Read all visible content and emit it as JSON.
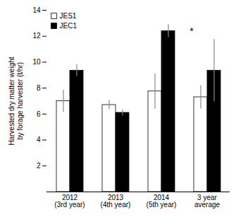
{
  "chart_data": {
    "type": "bar",
    "categories": [
      "2012\n(3rd year)",
      "2013\n(4th year)",
      "2014\n(5th year)",
      "3 year\naverage"
    ],
    "series": [
      {
        "name": "JES1",
        "color": "#ffffff",
        "values": [
          7.0,
          6.7,
          7.75,
          7.3
        ],
        "errors": [
          0.85,
          0.35,
          1.35,
          0.9
        ]
      },
      {
        "name": "JEC1",
        "color": "#000000",
        "values": [
          9.35,
          6.1,
          12.4,
          9.35
        ],
        "errors": [
          0.45,
          0.25,
          0.5,
          2.4
        ]
      }
    ],
    "ylabel": "Harvested dry matter weight\nby forage harvester (t/hr)",
    "ylim": [
      0,
      14
    ],
    "yticks": [
      2,
      4,
      6,
      8,
      10,
      12,
      14
    ],
    "grid": false,
    "legend": "upper left",
    "annotations": [
      {
        "text": "*",
        "category": "3 year\naverage",
        "y": 12.1
      }
    ]
  }
}
